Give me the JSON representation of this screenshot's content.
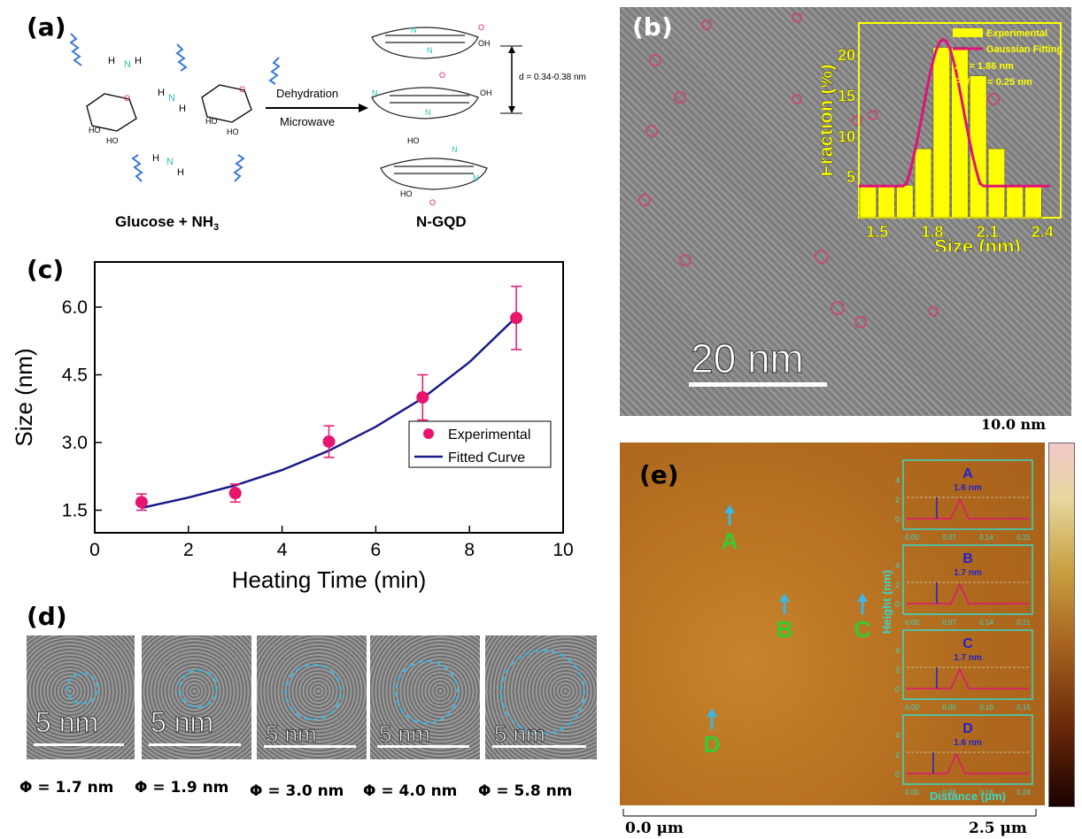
{
  "panels": {
    "a": {
      "label": "(a)",
      "reaction_top": "Dehydration",
      "reaction_bottom": "Microwave",
      "reactant_prefix": "Glucose + NH",
      "reactant_sub": "3",
      "product": "N-GQD",
      "spacing": "d = 0.34-0.38 nm",
      "atom_n": "N",
      "atom_h": "H",
      "atom_ho": "HO",
      "atom_oh": "OH",
      "atom_o": "O"
    },
    "b": {
      "label": "(b)",
      "scalebar": "20 nm"
    },
    "c": {
      "label": "(c)"
    },
    "d": {
      "label": "(d)",
      "images": [
        {
          "scalebar": "5 nm",
          "caption": "Φ = 1.7 nm"
        },
        {
          "scalebar": "5 nm",
          "caption": "Φ = 1.9 nm"
        },
        {
          "scalebar": "5 nm",
          "caption": "Φ = 3.0 nm"
        },
        {
          "scalebar": "5 nm",
          "caption": "Φ = 4.0 nm"
        },
        {
          "scalebar": "5 nm",
          "caption": "Φ = 5.8 nm"
        }
      ]
    },
    "e": {
      "label": "(e)",
      "colorbar_max": "10.0 nm",
      "x_start": "0.0 μm",
      "x_end": "2.5 μm",
      "markers": [
        "A",
        "B",
        "C",
        "D"
      ],
      "profile_ylabel": "Height (nm)",
      "profile_xlabel": "Distance (μm)"
    }
  },
  "chart_data": [
    {
      "type": "scatter",
      "panel": "c",
      "xlabel": "Heating Time (min)",
      "ylabel": "Size (nm)",
      "xlim": [
        0,
        10
      ],
      "ylim": [
        1.0,
        7.0
      ],
      "xticks": [
        "0",
        "2",
        "4",
        "6",
        "8",
        "10"
      ],
      "yticks": [
        "1.5",
        "3.0",
        "4.5",
        "6.0"
      ],
      "legend_position": "right",
      "series": [
        {
          "name": "Experimental",
          "color": "#e8156e",
          "x": [
            1,
            3,
            5,
            7,
            9
          ],
          "y": [
            1.68,
            1.88,
            3.02,
            4.0,
            5.76
          ],
          "error": [
            0.18,
            0.2,
            0.35,
            0.5,
            0.7
          ]
        },
        {
          "name": "Fitted Curve",
          "color": "#1a1a8c",
          "x": [
            1,
            2,
            3,
            4,
            5,
            6,
            7,
            8,
            9
          ],
          "y": [
            1.55,
            1.78,
            2.05,
            2.39,
            2.82,
            3.35,
            3.98,
            4.78,
            5.78
          ]
        }
      ]
    },
    {
      "type": "bar",
      "panel": "b-inset",
      "xlabel": "Size (nm)",
      "ylabel": "Fraction (%)",
      "xticks": [
        "1.5",
        "1.8",
        "2.1",
        "2.4"
      ],
      "xlim": [
        1.4,
        2.5
      ],
      "ylim": [
        0,
        24
      ],
      "yticks": [
        "5",
        "10",
        "15",
        "20"
      ],
      "bar_color": "#ffff00",
      "x": [
        1.45,
        1.55,
        1.65,
        1.75,
        1.85,
        1.95,
        2.05,
        2.15,
        2.25,
        2.35
      ],
      "values": [
        4,
        4,
        4,
        8.5,
        21,
        21,
        17.5,
        8.5,
        4,
        4
      ],
      "legend": [
        "Experimental",
        "Gaussian Fitting"
      ],
      "annotations": [
        "Xc = 1.86 nm",
        "FWHM = 0.25 nm"
      ],
      "fit_color": "#e0137a"
    },
    {
      "type": "line",
      "panel": "e-profiles",
      "ylabel": "Height (nm)",
      "xlabel": "Distance (μm)",
      "profiles": [
        {
          "name": "A",
          "height": "1.6 nm",
          "xticks": [
            "0.00",
            "0.07",
            "0.14",
            "0.21"
          ],
          "yticks": [
            "0",
            "2",
            "4"
          ]
        },
        {
          "name": "B",
          "height": "1.7 nm",
          "xticks": [
            "0.00",
            "0.07",
            "0.14",
            "0.21"
          ],
          "yticks": [
            "0",
            "2",
            "4"
          ]
        },
        {
          "name": "C",
          "height": "1.7 nm",
          "xticks": [
            "0.00",
            "0.05",
            "0.10",
            "0.15"
          ],
          "yticks": [
            "0",
            "2",
            "4"
          ]
        },
        {
          "name": "D",
          "height": "1.6 nm",
          "xticks": [
            "0.00",
            "0.08",
            "0.16",
            "0.24"
          ],
          "yticks": [
            "0",
            "2",
            "4"
          ]
        }
      ]
    }
  ]
}
